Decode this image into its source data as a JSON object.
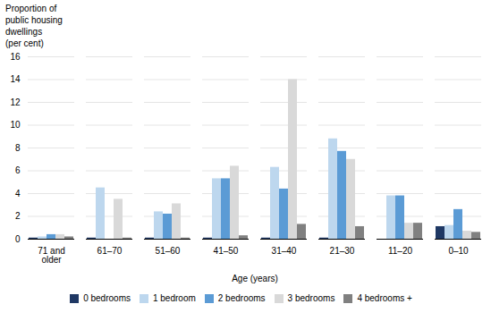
{
  "chart_data": {
    "type": "bar",
    "ylabel": "Proportion of\npublic housing\ndwellings\n(per cent)",
    "xlabel": "Age (years)",
    "categories": [
      "71 and\nolder",
      "61–70",
      "51–60",
      "41–50",
      "31–40",
      "21–30",
      "11–20",
      "0–10"
    ],
    "series": [
      {
        "name": "0 bedrooms",
        "color": "#1f3864",
        "values": [
          0.1,
          0.1,
          0.1,
          0.1,
          0.1,
          0.1,
          0.0,
          1.1
        ]
      },
      {
        "name": "1 bedroom",
        "color": "#bdd7ee",
        "values": [
          0.2,
          4.5,
          2.4,
          5.3,
          6.3,
          8.8,
          3.8,
          1.2
        ]
      },
      {
        "name": "2 bedrooms",
        "color": "#5b9bd5",
        "values": [
          0.4,
          0.0,
          2.2,
          5.3,
          4.4,
          7.7,
          3.8,
          2.6
        ]
      },
      {
        "name": "3 bedrooms",
        "color": "#d9d9d9",
        "values": [
          0.4,
          3.5,
          3.1,
          6.4,
          14.0,
          7.0,
          1.4,
          0.7
        ]
      },
      {
        "name": "4 bedrooms +",
        "color": "#808080",
        "values": [
          0.2,
          0.1,
          0.1,
          0.3,
          1.3,
          1.1,
          1.4,
          0.6
        ]
      }
    ],
    "ylim": [
      0,
      16
    ],
    "yticks": [
      0,
      2,
      4,
      6,
      8,
      10,
      12,
      14,
      16
    ],
    "grid": true,
    "legend": "bottom"
  }
}
